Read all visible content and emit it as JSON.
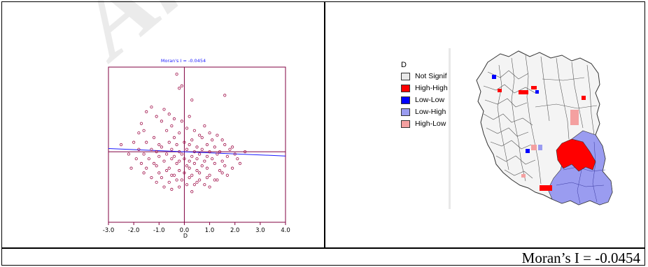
{
  "watermark": "Archive",
  "caption": "Moran’s I = -0.0454",
  "chart_data": {
    "type": "scatter",
    "title": "Moran's I = -0.0454",
    "xlabel": "D",
    "ylabel": "",
    "xlim": [
      -3.0,
      4.0
    ],
    "ylim": [
      -3.0,
      3.6
    ],
    "xticks": [
      "-3.0",
      "-2.0",
      "-1.0",
      "0.0",
      "1.0",
      "2.0",
      "3.0",
      "4.0"
    ],
    "regression": {
      "intercept": 0.0,
      "slope": -0.0454
    },
    "colors": {
      "points": "#a0104a",
      "axes": "#800040",
      "line": "#1a1aff",
      "title": "#1a1aff"
    },
    "x": [
      -0.3,
      -0.1,
      -0.2,
      1.6,
      0.3,
      -1.3,
      -1.5,
      -0.8,
      -1.1,
      -0.6,
      -0.4,
      -0.1,
      0.2,
      -1.7,
      -0.9,
      -0.5,
      -1.6,
      0.1,
      0.8,
      -1.8,
      -0.7,
      -0.2,
      0.4,
      0.6,
      1.0,
      1.3,
      -1.2,
      -0.4,
      0.3,
      0.7,
      1.1,
      1.5,
      -2.0,
      -1.5,
      -1.0,
      -0.6,
      -0.3,
      0.0,
      0.2,
      0.5,
      0.9,
      1.2,
      1.6,
      1.9,
      -1.8,
      -1.3,
      -0.9,
      -0.5,
      -0.2,
      0.1,
      0.4,
      0.7,
      1.0,
      1.4,
      1.8,
      -2.2,
      -1.6,
      -1.1,
      -0.7,
      -0.4,
      -0.1,
      0.3,
      0.6,
      0.9,
      1.3,
      1.7,
      2.0,
      -1.9,
      -1.4,
      -1.0,
      -0.5,
      -0.2,
      0.0,
      0.2,
      0.5,
      0.8,
      1.1,
      1.5,
      2.1,
      -1.7,
      -1.2,
      -0.8,
      -0.3,
      0.1,
      0.4,
      0.7,
      1.2,
      1.6,
      2.2,
      -2.1,
      -1.5,
      -1.1,
      -0.6,
      -0.2,
      0.2,
      0.5,
      0.9,
      1.4,
      1.9,
      -1.6,
      -1.0,
      -0.7,
      -0.4,
      0.0,
      0.3,
      0.6,
      1.0,
      1.5,
      -1.3,
      -0.9,
      -0.5,
      -0.1,
      0.2,
      0.6,
      0.9,
      1.3,
      1.7,
      -1.1,
      -0.6,
      -0.3,
      0.1,
      0.5,
      0.8,
      1.2,
      -0.8,
      -0.2,
      0.4,
      1.0,
      -0.5,
      0.3,
      2.4,
      -2.5
    ],
    "y": [
      3.3,
      2.8,
      2.7,
      2.4,
      2.2,
      1.9,
      1.7,
      1.8,
      1.5,
      1.6,
      1.4,
      1.3,
      1.5,
      1.2,
      1.3,
      1.1,
      0.9,
      1.0,
      1.1,
      0.8,
      0.9,
      0.8,
      0.9,
      0.7,
      0.8,
      0.7,
      0.6,
      0.6,
      0.5,
      0.6,
      0.5,
      0.5,
      0.4,
      0.4,
      0.3,
      0.4,
      0.3,
      0.4,
      0.3,
      0.2,
      0.3,
      0.2,
      0.3,
      0.2,
      0.1,
      0.1,
      0.2,
      0.1,
      0.0,
      0.1,
      0.0,
      0.1,
      0.0,
      0.0,
      0.1,
      -0.1,
      -0.1,
      0.0,
      -0.1,
      -0.2,
      -0.1,
      -0.2,
      -0.1,
      -0.2,
      -0.1,
      -0.2,
      -0.1,
      -0.3,
      -0.3,
      -0.2,
      -0.3,
      -0.4,
      -0.3,
      -0.4,
      -0.3,
      -0.4,
      -0.3,
      -0.4,
      -0.3,
      -0.5,
      -0.5,
      -0.4,
      -0.5,
      -0.6,
      -0.5,
      -0.6,
      -0.5,
      -0.6,
      -0.5,
      -0.7,
      -0.7,
      -0.6,
      -0.7,
      -0.8,
      -0.7,
      -0.8,
      -0.7,
      -0.8,
      -0.7,
      -0.9,
      -0.9,
      -0.8,
      -1.0,
      -0.9,
      -1.0,
      -0.9,
      -1.0,
      -0.9,
      -1.1,
      -1.1,
      -1.0,
      -1.2,
      -1.1,
      -1.2,
      -1.1,
      -1.2,
      -1.0,
      -1.3,
      -1.3,
      -1.2,
      -1.4,
      -1.3,
      -1.4,
      -1.2,
      -1.5,
      -1.5,
      -1.4,
      -1.5,
      -1.6,
      -1.7,
      0.0,
      0.3
    ]
  },
  "map": {
    "legend_title": "D",
    "legend": [
      {
        "label": "Not Signif",
        "color": "#e8e8e8"
      },
      {
        "label": "High-High",
        "color": "#ff0000"
      },
      {
        "label": "Low-Low",
        "color": "#0000ff"
      },
      {
        "label": "Low-High",
        "color": "#9a9cf0"
      },
      {
        "label": "High-Low",
        "color": "#f4a0a0"
      }
    ]
  }
}
